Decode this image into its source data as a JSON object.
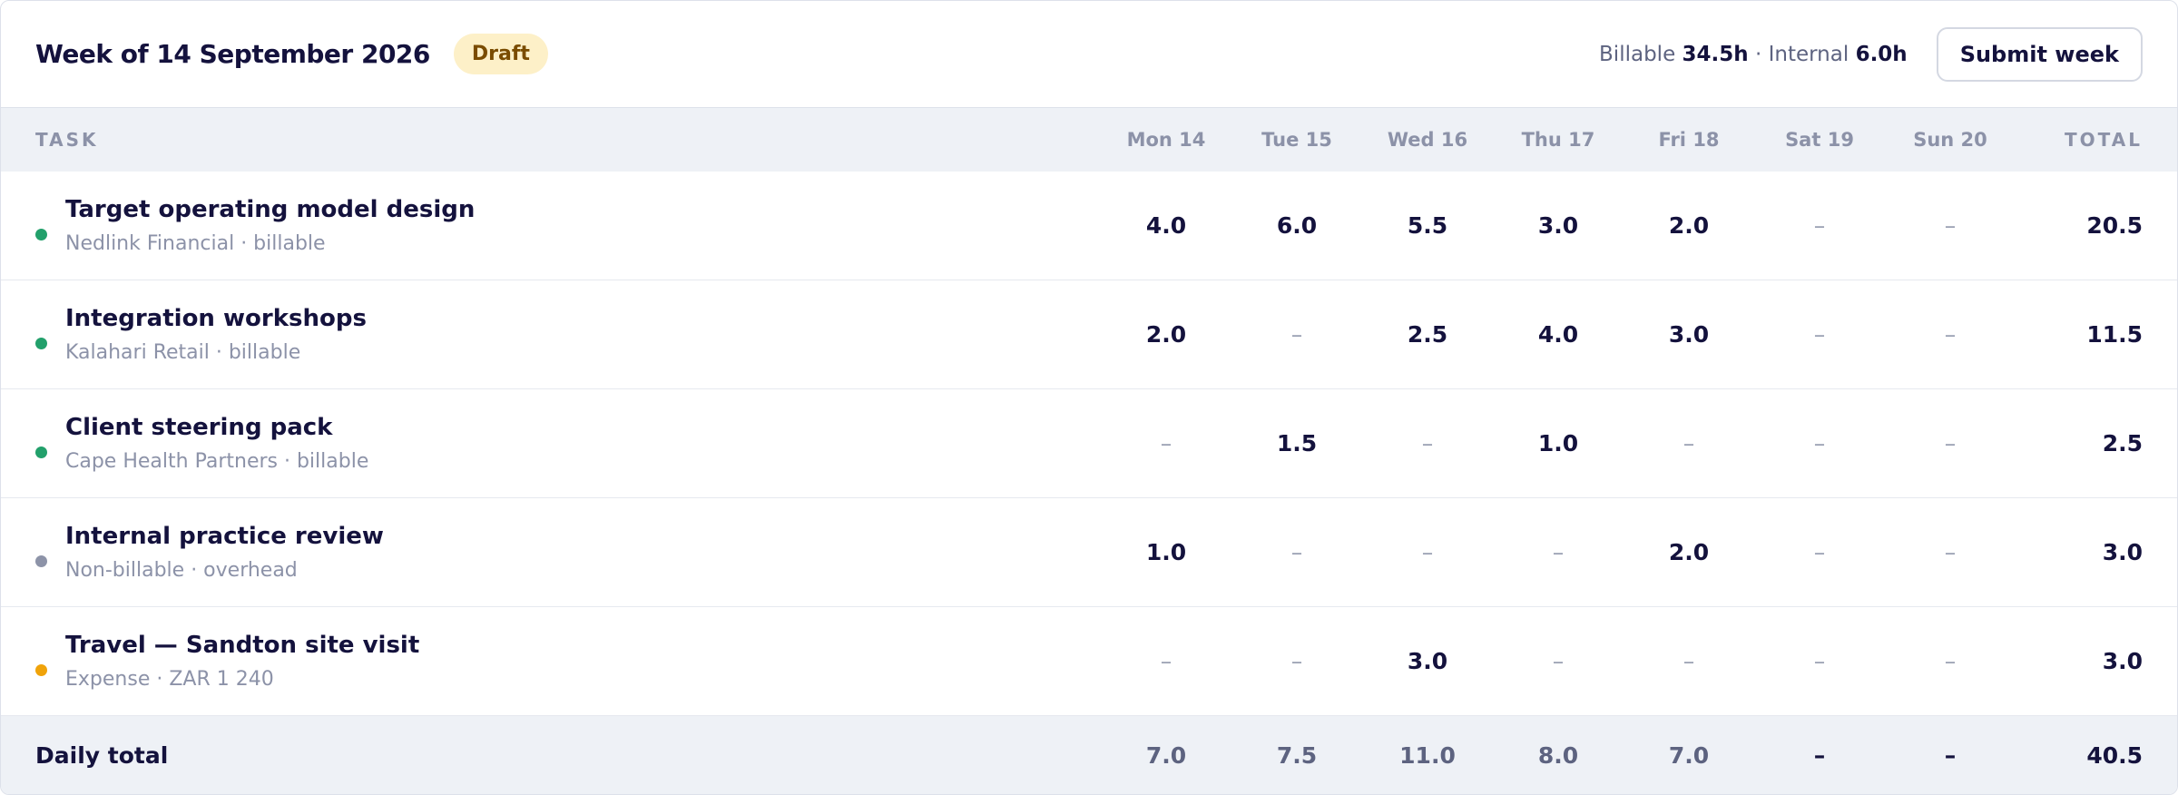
{
  "header": {
    "title": "Week of 14 September 2026",
    "badge": "Draft",
    "summary": {
      "billable_label": "Billable",
      "billable_value": "34.5h",
      "separator": "·",
      "internal_label": "Internal",
      "internal_value": "6.0h"
    },
    "button": "Submit week"
  },
  "table": {
    "columns": [
      "TASK",
      "Mon 14",
      "Tue 15",
      "Wed 16",
      "Thu 17",
      "Fri 18",
      "Sat 19",
      "Sun 20",
      "TOTAL"
    ],
    "rows": [
      {
        "task": "Target operating model design",
        "detail": "Nedlink Financial · billable",
        "color": "#22a06b",
        "cells": [
          "4.0",
          "6.0",
          "5.5",
          "3.0",
          "2.0",
          "–",
          "–"
        ],
        "total": "20.5"
      },
      {
        "task": "Integration workshops",
        "detail": "Kalahari Retail · billable",
        "color": "#22a06b",
        "cells": [
          "2.0",
          "–",
          "2.5",
          "4.0",
          "3.0",
          "–",
          "–"
        ],
        "total": "11.5"
      },
      {
        "task": "Client steering pack",
        "detail": "Cape Health Partners · billable",
        "color": "#22a06b",
        "cells": [
          "–",
          "1.5",
          "–",
          "1.0",
          "–",
          "–",
          "–"
        ],
        "total": "2.5"
      },
      {
        "task": "Internal practice review",
        "detail": "Non-billable · overhead",
        "color": "#8d93a8",
        "cells": [
          "1.0",
          "–",
          "–",
          "–",
          "2.0",
          "–",
          "–"
        ],
        "total": "3.0"
      },
      {
        "task": "Travel — Sandton site visit",
        "detail": "Expense · ZAR 1 240",
        "color": "#f0a30a",
        "cells": [
          "–",
          "–",
          "3.0",
          "–",
          "–",
          "–",
          "–"
        ],
        "total": "3.0"
      }
    ],
    "footer": {
      "label": "Daily total",
      "cells": [
        "7.0",
        "7.5",
        "11.0",
        "8.0",
        "7.0",
        "–",
        "–"
      ],
      "total": "40.5"
    }
  }
}
